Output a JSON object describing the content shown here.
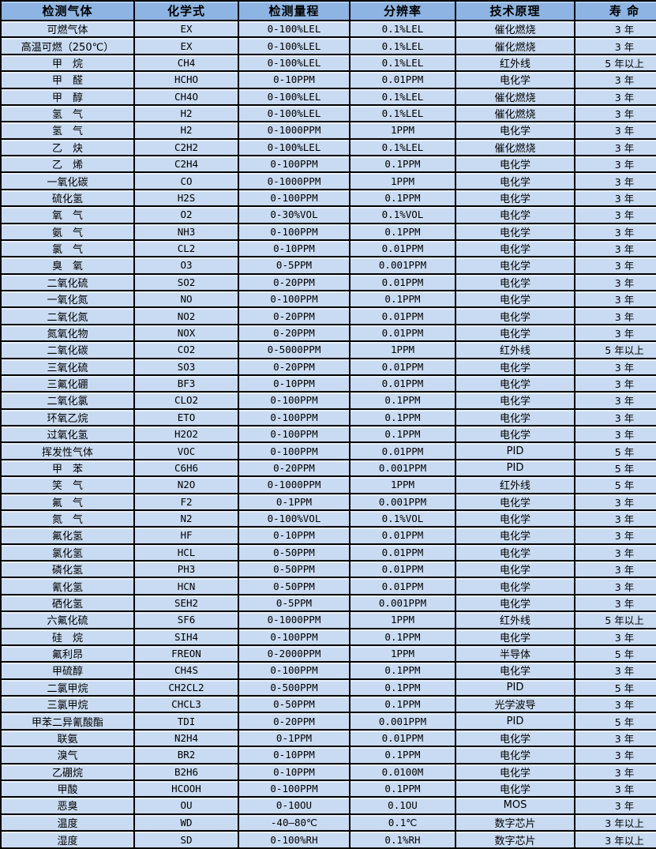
{
  "colors": {
    "header-bg": "#8db4e2",
    "row-bg": "#c9dbf2",
    "border-color": "#000000",
    "text-color": "#000000"
  },
  "table": {
    "columns": [
      {
        "key": "gas",
        "label": "检测气体"
      },
      {
        "key": "formula",
        "label": "化学式"
      },
      {
        "key": "range",
        "label": "检测量程"
      },
      {
        "key": "resolution",
        "label": "分辨率"
      },
      {
        "key": "principle",
        "label": "技术原理"
      },
      {
        "key": "life",
        "label": "寿 命"
      }
    ],
    "rows": [
      [
        "可燃气体",
        "EX",
        "0-100%LEL",
        "0.1%LEL",
        "催化燃烧",
        "3 年"
      ],
      [
        "高温可燃（250℃）",
        "EX",
        "0-100%LEL",
        "0.1%LEL",
        "催化燃烧",
        "3 年"
      ],
      [
        "甲　烷",
        "CH4",
        "0-100%LEL",
        "0.1%LEL",
        "红外线",
        "5 年以上"
      ],
      [
        "甲　醛",
        "HCHO",
        "0-10PPM",
        "0.01PPM",
        "电化学",
        "3 年"
      ],
      [
        "甲　醇",
        "CH4O",
        "0-100%LEL",
        "0.1%LEL",
        "催化燃烧",
        "3 年"
      ],
      [
        "氢　气",
        "H2",
        "0-100%LEL",
        "0.1%LEL",
        "催化燃烧",
        "3 年"
      ],
      [
        "氢　气",
        "H2",
        "0-1000PPM",
        "1PPM",
        "电化学",
        "3 年"
      ],
      [
        "乙　炔",
        "C2H2",
        "0-100%LEL",
        "0.1%LEL",
        "催化燃烧",
        "3 年"
      ],
      [
        "乙　烯",
        "C2H4",
        "0-100PPM",
        "0.1PPM",
        "电化学",
        "3 年"
      ],
      [
        "一氧化碳",
        "CO",
        "0-1000PPM",
        "1PPM",
        "电化学",
        "3 年"
      ],
      [
        "硫化氢",
        "H2S",
        "0-100PPM",
        "0.1PPM",
        "电化学",
        "3 年"
      ],
      [
        "氧　气",
        "O2",
        "0-30%VOL",
        "0.1%VOL",
        "电化学",
        "3 年"
      ],
      [
        "氨　气",
        "NH3",
        "0-100PPM",
        "0.1PPM",
        "电化学",
        "3 年"
      ],
      [
        "氯　气",
        "CL2",
        "0-10PPM",
        "0.01PPM",
        "电化学",
        "3 年"
      ],
      [
        "臭　氧",
        "O3",
        "0-5PPM",
        "0.001PPM",
        "电化学",
        "3 年"
      ],
      [
        "二氧化硫",
        "SO2",
        "0-20PPM",
        "0.01PPM",
        "电化学",
        "3 年"
      ],
      [
        "一氧化氮",
        "NO",
        "0-100PPM",
        "0.1PPM",
        "电化学",
        "3 年"
      ],
      [
        "二氧化氮",
        "NO2",
        "0-20PPM",
        "0.01PPM",
        "电化学",
        "3 年"
      ],
      [
        "氮氧化物",
        "NOX",
        "0-20PPM",
        "0.01PPM",
        "电化学",
        "3 年"
      ],
      [
        "二氧化碳",
        "CO2",
        "0-5000PPM",
        "1PPM",
        "红外线",
        "5 年以上"
      ],
      [
        "三氧化硫",
        "SO3",
        "0-20PPM",
        "0.01PPM",
        "电化学",
        "3 年"
      ],
      [
        "三氟化硼",
        "BF3",
        "0-10PPM",
        "0.01PPM",
        "电化学",
        "3 年"
      ],
      [
        "二氧化氯",
        "CLO2",
        "0-100PPM",
        "0.1PPM",
        "电化学",
        "3 年"
      ],
      [
        "环氧乙烷",
        "ETO",
        "0-100PPM",
        "0.1PPM",
        "电化学",
        "3 年"
      ],
      [
        "过氧化氢",
        "H2O2",
        "0-100PPM",
        "0.1PPM",
        "电化学",
        "3 年"
      ],
      [
        "挥发性气体",
        "VOC",
        "0-100PPM",
        "0.01PPM",
        "PID",
        "5 年"
      ],
      [
        "甲　苯",
        "C6H6",
        "0-20PPM",
        "0.001PPM",
        "PID",
        "5 年"
      ],
      [
        "笑　气",
        "N2O",
        "0-1000PPM",
        "1PPM",
        "红外线",
        "5 年"
      ],
      [
        "氟　气",
        "F2",
        "0-1PPM",
        "0.001PPM",
        "电化学",
        "3 年"
      ],
      [
        "氮　气",
        "N2",
        "0-100%VOL",
        "0.1%VOL",
        "电化学",
        "3 年"
      ],
      [
        "氟化氢",
        "HF",
        "0-10PPM",
        "0.01PPM",
        "电化学",
        "3 年"
      ],
      [
        "氯化氢",
        "HCL",
        "0-50PPM",
        "0.01PPM",
        "电化学",
        "3 年"
      ],
      [
        "磷化氢",
        "PH3",
        "0-50PPM",
        "0.01PPM",
        "电化学",
        "3 年"
      ],
      [
        "氰化氢",
        "HCN",
        "0-50PPM",
        "0.01PPM",
        "电化学",
        "3 年"
      ],
      [
        "硒化氢",
        "SEH2",
        "0-5PPM",
        "0.001PPM",
        "电化学",
        "3 年"
      ],
      [
        "六氟化硫",
        "SF6",
        "0-1000PPM",
        "1PPM",
        "红外线",
        "5 年以上"
      ],
      [
        "硅　烷",
        "SIH4",
        "0-100PPM",
        "0.1PPM",
        "电化学",
        "3 年"
      ],
      [
        "氟利昂",
        "FREON",
        "0-2000PPM",
        "1PPM",
        "半导体",
        "5 年"
      ],
      [
        "甲硫醇",
        "CH4S",
        "0-100PPM",
        "0.1PPM",
        "电化学",
        "3 年"
      ],
      [
        "二氯甲烷",
        "CH2CL2",
        "0-500PPM",
        "0.1PPM",
        "PID",
        "5 年"
      ],
      [
        "三氯甲烷",
        "CHCL3",
        "0-50PPM",
        "0.1PPM",
        "光学波导",
        "3 年"
      ],
      [
        "甲苯二异氰酸酯",
        "TDI",
        "0-20PPM",
        "0.001PPM",
        "PID",
        "5 年"
      ],
      [
        "联氨",
        "N2H4",
        "0-1PPM",
        "0.01PPM",
        "电化学",
        "3 年"
      ],
      [
        "溴气",
        "BR2",
        "0-10PPM",
        "0.1PPM",
        "电化学",
        "3 年"
      ],
      [
        "乙硼烷",
        "B2H6",
        "0-10PPM",
        "0.0100M",
        "电化学",
        "3 年"
      ],
      [
        "甲酸",
        "HCOOH",
        "0-100PPM",
        "0.1PPM",
        "电化学",
        "3 年"
      ],
      [
        "恶臭",
        "OU",
        "0-10OU",
        "0.1OU",
        "MOS",
        "3 年"
      ],
      [
        "温度",
        "WD",
        "-40—80℃",
        "0.1℃",
        "数字芯片",
        "3 年以上"
      ],
      [
        "湿度",
        "SD",
        "0-100%RH",
        "0.1%RH",
        "数字芯片",
        "3 年以上"
      ]
    ]
  }
}
